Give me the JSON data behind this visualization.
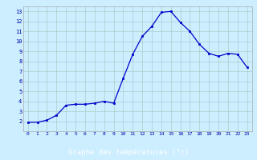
{
  "hours": [
    0,
    1,
    2,
    3,
    4,
    5,
    6,
    7,
    8,
    9,
    10,
    11,
    12,
    13,
    14,
    15,
    16,
    17,
    18,
    19,
    20,
    21,
    22,
    23
  ],
  "temperatures": [
    1.9,
    1.9,
    2.1,
    2.6,
    3.6,
    3.7,
    3.7,
    3.8,
    4.0,
    3.8,
    6.3,
    8.7,
    10.5,
    11.5,
    12.9,
    13.0,
    11.9,
    11.0,
    9.7,
    8.8,
    8.5,
    8.8,
    8.7,
    7.4
  ],
  "line_color": "#0000cc",
  "marker": "s",
  "marker_size": 2,
  "bg_color": "#cceeff",
  "grid_color": "#aacccc",
  "xlabel": "Graphe des températures (°c)",
  "xlabel_bg": "#0000aa",
  "xlabel_fg": "#ffffff",
  "tick_color": "#0000aa",
  "ylim": [
    1,
    13.5
  ],
  "yticks": [
    2,
    3,
    4,
    5,
    6,
    7,
    8,
    9,
    10,
    11,
    12,
    13
  ],
  "xticks": [
    0,
    1,
    2,
    3,
    4,
    5,
    6,
    7,
    8,
    9,
    10,
    11,
    12,
    13,
    14,
    15,
    16,
    17,
    18,
    19,
    20,
    21,
    22,
    23
  ],
  "spine_color": "#aaaaaa"
}
